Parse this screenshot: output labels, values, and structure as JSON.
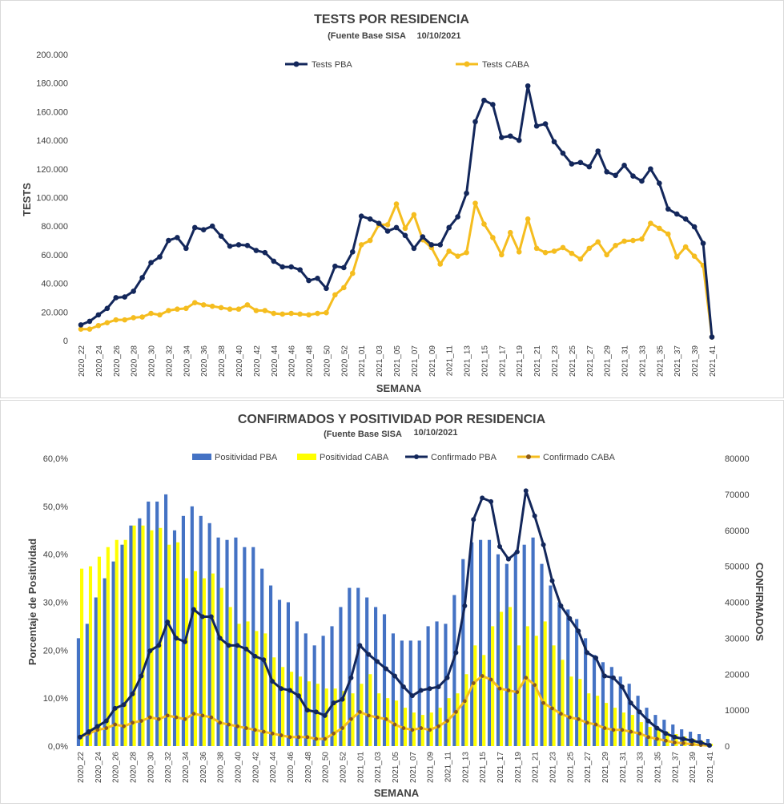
{
  "chart_data": [
    {
      "type": "line",
      "title": "TESTS POR RESIDENCIA",
      "subtitle": "(Fuente Base SISA",
      "date": "10/10/2021",
      "xlabel": "SEMANA",
      "ylabel": "TESTS",
      "ylim": [
        0,
        200000
      ],
      "yticks": [
        "0",
        "20.000",
        "40.000",
        "60.000",
        "80.000",
        "100.000",
        "120.000",
        "140.000",
        "160.000",
        "180.000",
        "200.000"
      ],
      "grid": false,
      "legend_position": "top",
      "categories": [
        "2020_22",
        "2020_23",
        "2020_24",
        "2020_25",
        "2020_26",
        "2020_27",
        "2020_28",
        "2020_29",
        "2020_30",
        "2020_31",
        "2020_32",
        "2020_33",
        "2020_34",
        "2020_35",
        "2020_36",
        "2020_37",
        "2020_38",
        "2020_39",
        "2020_40",
        "2020_41",
        "2020_42",
        "2020_43",
        "2020_44",
        "2020_45",
        "2020_46",
        "2020_47",
        "2020_48",
        "2020_49",
        "2020_50",
        "2020_51",
        "2020_52",
        "2020_53",
        "2021_01",
        "2021_02",
        "2021_03",
        "2021_04",
        "2021_05",
        "2021_06",
        "2021_07",
        "2021_08",
        "2021_09",
        "2021_10",
        "2021_11",
        "2021_12",
        "2021_13",
        "2021_14",
        "2021_15",
        "2021_16",
        "2021_17",
        "2021_18",
        "2021_19",
        "2021_20",
        "2021_21",
        "2021_22",
        "2021_23",
        "2021_24",
        "2021_25",
        "2021_26",
        "2021_27",
        "2021_28",
        "2021_29",
        "2021_30",
        "2021_31",
        "2021_32",
        "2021_33",
        "2021_34",
        "2021_35",
        "2021_36",
        "2021_37",
        "2021_38",
        "2021_39",
        "2021_40",
        "2021_41"
      ],
      "x_tick_labels": [
        "2020_22",
        "2020_24",
        "2020_26",
        "2020_28",
        "2020_30",
        "2020_32",
        "2020_34",
        "2020_36",
        "2020_38",
        "2020_40",
        "2020_42",
        "2020_44",
        "2020_46",
        "2020_48",
        "2020_50",
        "2020_52",
        "2021_01",
        "2021_03",
        "2021_05",
        "2021_07",
        "2021_09",
        "2021_11",
        "2021_13",
        "2021_15",
        "2021_17",
        "2021_19",
        "2021_21",
        "2021_23",
        "2021_25",
        "2021_27",
        "2021_29",
        "2021_31",
        "2021_33",
        "2021_35",
        "2021_37",
        "2021_39",
        "2021_41"
      ],
      "series": [
        {
          "name": "Tests PBA",
          "color": "#13275b",
          "values": [
            11000,
            13500,
            18000,
            22500,
            30000,
            30500,
            34500,
            44000,
            54500,
            58500,
            70000,
            72000,
            64500,
            79000,
            77500,
            80000,
            73000,
            66000,
            67000,
            66500,
            63000,
            61500,
            55500,
            51500,
            51500,
            49500,
            42000,
            43500,
            36500,
            52000,
            51000,
            62000,
            87000,
            85000,
            82000,
            76500,
            79000,
            73500,
            64500,
            72500,
            67000,
            67000,
            79000,
            86500,
            103000,
            153000,
            168000,
            165000,
            142000,
            143000,
            140000,
            178000,
            150000,
            151500,
            139000,
            131000,
            123500,
            124500,
            121500,
            132500,
            118000,
            115500,
            122500,
            115000,
            111500,
            120000,
            110000,
            92000,
            88500,
            85000,
            79500,
            68000,
            2500
          ]
        },
        {
          "name": "Tests CABA",
          "color": "#f5bd1f",
          "values": [
            8000,
            8000,
            10500,
            12500,
            14500,
            14500,
            16000,
            16500,
            19000,
            18000,
            21000,
            22000,
            22500,
            26500,
            25000,
            24000,
            23000,
            22000,
            22000,
            25000,
            21000,
            21000,
            19000,
            18500,
            19000,
            18500,
            18000,
            19000,
            19500,
            32000,
            37000,
            47000,
            67000,
            70000,
            81000,
            81000,
            95500,
            78500,
            88000,
            70500,
            65000,
            53500,
            62500,
            59000,
            61500,
            96000,
            81500,
            72000,
            60000,
            75500,
            62000,
            85000,
            64500,
            61500,
            62500,
            65000,
            61000,
            57000,
            64500,
            69000,
            60000,
            66500,
            69500,
            70000,
            71000,
            82000,
            78500,
            74500,
            58500,
            65500,
            59000,
            52500,
            2500
          ]
        }
      ]
    },
    {
      "type": "bar",
      "title": "CONFIRMADOS Y POSITIVIDAD POR RESIDENCIA",
      "subtitle": "(Fuente Base SISA",
      "date": "10/10/2021",
      "xlabel": "SEMANA",
      "ylabel": "Porcentaje de Positividad",
      "y2label": "CONFIRMADOS",
      "ylim": [
        0,
        60
      ],
      "y2lim": [
        0,
        80000
      ],
      "yticks": [
        "0,0%",
        "10,0%",
        "20,0%",
        "30,0%",
        "40,0%",
        "50,0%",
        "60,0%"
      ],
      "y2ticks": [
        "0",
        "10000",
        "20000",
        "30000",
        "40000",
        "50000",
        "60000",
        "70000",
        "80000"
      ],
      "grid": false,
      "legend_position": "top",
      "categories": [
        "2020_22",
        "2020_23",
        "2020_24",
        "2020_25",
        "2020_26",
        "2020_27",
        "2020_28",
        "2020_29",
        "2020_30",
        "2020_31",
        "2020_32",
        "2020_33",
        "2020_34",
        "2020_35",
        "2020_36",
        "2020_37",
        "2020_38",
        "2020_39",
        "2020_40",
        "2020_41",
        "2020_42",
        "2020_43",
        "2020_44",
        "2020_45",
        "2020_46",
        "2020_47",
        "2020_48",
        "2020_49",
        "2020_50",
        "2020_51",
        "2020_52",
        "2020_53",
        "2021_01",
        "2021_02",
        "2021_03",
        "2021_04",
        "2021_05",
        "2021_06",
        "2021_07",
        "2021_08",
        "2021_09",
        "2021_10",
        "2021_11",
        "2021_12",
        "2021_13",
        "2021_14",
        "2021_15",
        "2021_16",
        "2021_17",
        "2021_18",
        "2021_19",
        "2021_20",
        "2021_21",
        "2021_22",
        "2021_23",
        "2021_24",
        "2021_25",
        "2021_26",
        "2021_27",
        "2021_28",
        "2021_29",
        "2021_30",
        "2021_31",
        "2021_32",
        "2021_33",
        "2021_34",
        "2021_35",
        "2021_36",
        "2021_37",
        "2021_38",
        "2021_39",
        "2021_40",
        "2021_41"
      ],
      "x_tick_labels": [
        "2020_22",
        "2020_24",
        "2020_26",
        "2020_28",
        "2020_30",
        "2020_32",
        "2020_34",
        "2020_36",
        "2020_38",
        "2020_40",
        "2020_42",
        "2020_44",
        "2020_46",
        "2020_48",
        "2020_50",
        "2020_52",
        "2021_01",
        "2021_03",
        "2021_05",
        "2021_07",
        "2021_09",
        "2021_11",
        "2021_13",
        "2021_15",
        "2021_17",
        "2021_19",
        "2021_21",
        "2021_23",
        "2021_25",
        "2021_27",
        "2021_29",
        "2021_31",
        "2021_33",
        "2021_35",
        "2021_37",
        "2021_39",
        "2021_41"
      ],
      "series": [
        {
          "name": "Positividad PBA",
          "kind": "bar",
          "axis": "left",
          "color": "#4472c4",
          "values": [
            22.5,
            25.5,
            31,
            35,
            38.5,
            42,
            46,
            47.5,
            51,
            51,
            52.5,
            45,
            48,
            50,
            48,
            46.5,
            43.5,
            43,
            43.5,
            41.5,
            41.5,
            37,
            33.5,
            30.5,
            30,
            26,
            23.5,
            21,
            23,
            25,
            29,
            33,
            33,
            31,
            29,
            27.5,
            23.5,
            22,
            22,
            22,
            25,
            26,
            25.5,
            31.5,
            39,
            42.5,
            43,
            43,
            40,
            38,
            40.5,
            42,
            43.5,
            38,
            33.5,
            30,
            28.5,
            26.5,
            22.5,
            19,
            17.5,
            16.5,
            14.5,
            13,
            10.5,
            8,
            6.5,
            5.5,
            4.5,
            3.5,
            3,
            2.5,
            1.5
          ]
        },
        {
          "name": "Positividad CABA",
          "kind": "bar",
          "axis": "left",
          "color": "#ffff00",
          "values": [
            37,
            37.5,
            39.5,
            41.5,
            43,
            43,
            46,
            46,
            45,
            45.5,
            42,
            42.5,
            35,
            36.5,
            35,
            36,
            33,
            29,
            25.5,
            26,
            24,
            23.5,
            18.5,
            16.5,
            15.5,
            14.5,
            13.5,
            13,
            12,
            12,
            11.5,
            11,
            13,
            15,
            11,
            10,
            9.5,
            8,
            7,
            6.5,
            7,
            8,
            10,
            11,
            15,
            21,
            19,
            25,
            28,
            29,
            21,
            25,
            23,
            26,
            21,
            18,
            14.5,
            14,
            11,
            10.5,
            9,
            8,
            7,
            6.5,
            5,
            4,
            3.5,
            3,
            2.5,
            2,
            1.5,
            1,
            0.5
          ]
        },
        {
          "name": "Confirmado PBA",
          "kind": "line",
          "axis": "right",
          "color": "#13275b",
          "values": [
            2500,
            4000,
            5500,
            7000,
            10500,
            11500,
            14500,
            19500,
            26500,
            28000,
            34500,
            30000,
            29000,
            38000,
            36000,
            36000,
            30000,
            28000,
            28000,
            27000,
            25000,
            24000,
            18000,
            16000,
            15500,
            14000,
            10000,
            9500,
            8500,
            12000,
            13000,
            19000,
            28000,
            25500,
            23500,
            21500,
            19500,
            16500,
            14000,
            15500,
            16000,
            16500,
            19000,
            26000,
            39000,
            63000,
            69000,
            68000,
            55500,
            52000,
            54000,
            71000,
            64000,
            56000,
            46000,
            39000,
            35500,
            32000,
            26000,
            24500,
            19500,
            19000,
            16500,
            12000,
            9500,
            7000,
            5000,
            3500,
            2500,
            2000,
            1500,
            1000,
            200
          ]
        },
        {
          "name": "Confirmado CABA",
          "kind": "line",
          "axis": "right",
          "color": "#f5bd1f",
          "marker_color": "#8b5a1a",
          "values": [
            2500,
            3500,
            4500,
            5000,
            6000,
            5500,
            6500,
            7000,
            8000,
            7500,
            8500,
            8000,
            7500,
            9000,
            8500,
            8000,
            6500,
            6000,
            5500,
            5000,
            4500,
            4000,
            3500,
            3000,
            2500,
            2500,
            2500,
            2000,
            2000,
            3500,
            5000,
            7500,
            9500,
            8500,
            8000,
            7500,
            6000,
            5000,
            4500,
            5000,
            4500,
            5500,
            7000,
            9500,
            12500,
            17500,
            19500,
            18500,
            16000,
            15500,
            15000,
            19000,
            17000,
            12000,
            10500,
            9000,
            8000,
            7500,
            6500,
            6000,
            5000,
            4500,
            4500,
            4000,
            3500,
            2500,
            2000,
            1500,
            1000,
            800,
            500,
            300,
            100
          ]
        }
      ]
    }
  ]
}
